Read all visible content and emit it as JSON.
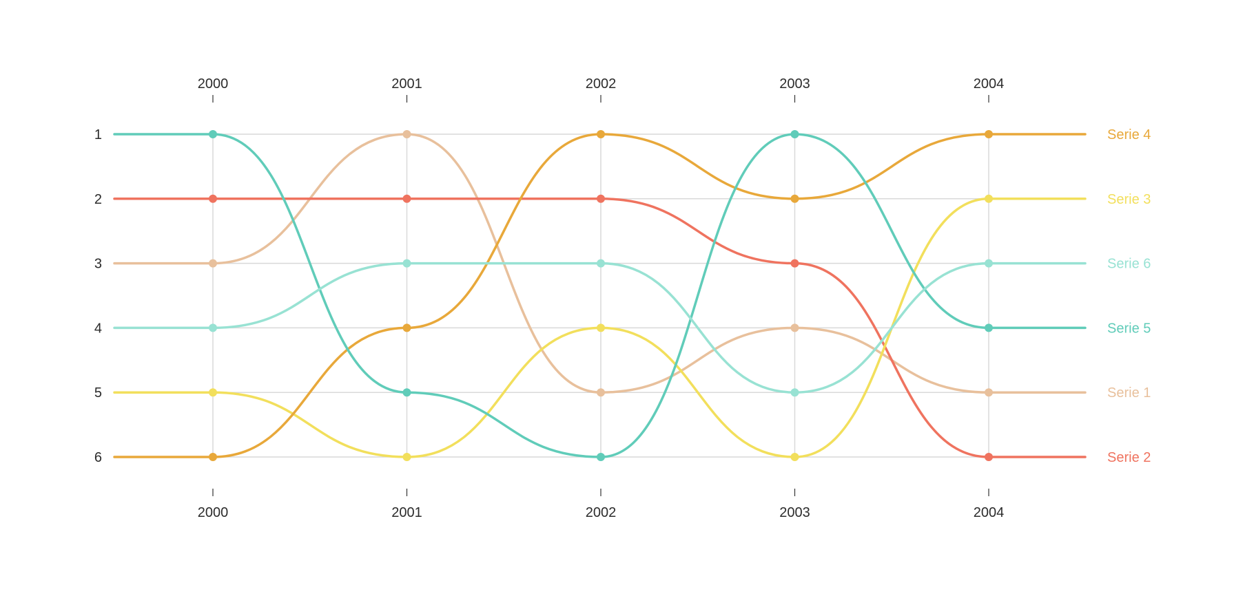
{
  "chart_data": {
    "type": "line",
    "subtype": "bump",
    "title": "",
    "xlabel": "",
    "ylabel": "",
    "x": [
      "2000",
      "2001",
      "2002",
      "2003",
      "2004"
    ],
    "y_ticks": [
      "1",
      "2",
      "3",
      "4",
      "5",
      "6"
    ],
    "ylim": [
      1,
      6
    ],
    "y_reversed": true,
    "grid": true,
    "x_axis_labels": "top-and-bottom",
    "legend": "right-end-labels",
    "series": [
      {
        "name": "Serie 1",
        "color": "#e8c09c",
        "values": [
          3,
          1,
          5,
          4,
          5
        ]
      },
      {
        "name": "Serie 2",
        "color": "#ef735f",
        "values": [
          2,
          2,
          2,
          3,
          6
        ]
      },
      {
        "name": "Serie 3",
        "color": "#f2df5c",
        "values": [
          5,
          6,
          4,
          6,
          2
        ]
      },
      {
        "name": "Serie 4",
        "color": "#e8a83a",
        "values": [
          6,
          4,
          1,
          2,
          1
        ]
      },
      {
        "name": "Serie 5",
        "color": "#60ccb9",
        "values": [
          1,
          5,
          6,
          1,
          4
        ]
      },
      {
        "name": "Serie 6",
        "color": "#98e2d3",
        "values": [
          4,
          3,
          3,
          5,
          3
        ]
      }
    ]
  }
}
